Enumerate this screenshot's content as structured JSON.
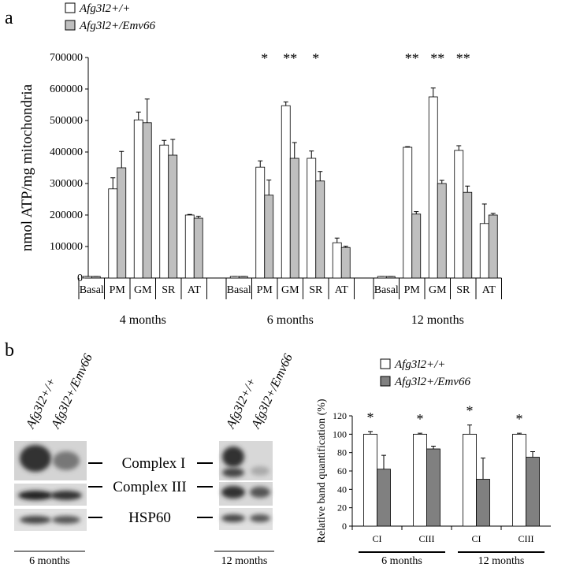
{
  "panel_labels": [
    "a",
    "b"
  ],
  "chart_data": [
    {
      "type": "bar",
      "y_label": "nmol ATP/mg mitochondria",
      "categories": [
        "Basal",
        "PM",
        "GM",
        "SR",
        "AT",
        "Basal",
        "PM",
        "GM",
        "SR",
        "AT",
        "Basal",
        "PM",
        "GM",
        "SR",
        "AT"
      ],
      "groups": [
        "4 months",
        "6 months",
        "12 months"
      ],
      "series": [
        {
          "name": "Afg3l2+/+",
          "color": "#ffffff",
          "values": [
            5000,
            283000,
            502000,
            422000,
            200000,
            5000,
            352000,
            547000,
            380000,
            112000,
            5000,
            415000,
            575000,
            405000,
            173000
          ],
          "errors": [
            0,
            35000,
            25000,
            15000,
            2000,
            0,
            20000,
            12000,
            23000,
            15000,
            0,
            2000,
            28000,
            15000,
            62000
          ]
        },
        {
          "name": "Afg3l2+/Emv66",
          "color": "#bfbfbf",
          "values": [
            5000,
            350000,
            493000,
            390000,
            190000,
            5000,
            263000,
            380000,
            308000,
            97000,
            5000,
            203000,
            300000,
            272000,
            200000
          ],
          "errors": [
            0,
            52000,
            75000,
            50000,
            6000,
            0,
            48000,
            50000,
            30000,
            4000,
            0,
            8000,
            10000,
            20000,
            5000
          ]
        }
      ],
      "significance": [
        null,
        null,
        null,
        null,
        null,
        null,
        "*",
        "**",
        "*",
        null,
        null,
        "**",
        "**",
        "**",
        null
      ],
      "ylim": [
        0,
        700000
      ],
      "yticks": [
        0,
        100000,
        200000,
        300000,
        400000,
        500000,
        600000,
        700000
      ]
    },
    {
      "type": "bar",
      "y_label": "Relative band quantification (%)",
      "categories": [
        "CI",
        "CIII",
        "CI",
        "CIII"
      ],
      "groups": [
        "6 months",
        "12 months"
      ],
      "series": [
        {
          "name": "Afg3l2+/+",
          "color": "#ffffff",
          "values": [
            100,
            100,
            100,
            100
          ],
          "errors": [
            3,
            1,
            10,
            1
          ]
        },
        {
          "name": "Afg3l2+/Emv66",
          "color": "#808080",
          "values": [
            62,
            84,
            51,
            75
          ],
          "errors": [
            15,
            3,
            23,
            6
          ]
        }
      ],
      "significance": [
        "*",
        "*",
        "*",
        "*"
      ],
      "ylim": [
        0,
        120
      ],
      "yticks": [
        0,
        20,
        40,
        60,
        80,
        100,
        120
      ]
    }
  ],
  "blot": {
    "lanes": [
      "Afg3l2+/+",
      "Afg3l2+/Emv66",
      "Afg3l2+/+",
      "Afg3l2+/Emv66"
    ],
    "bands": [
      "Complex I",
      "Complex III",
      "HSP60"
    ],
    "ages": [
      "6 months",
      "12 months"
    ]
  }
}
